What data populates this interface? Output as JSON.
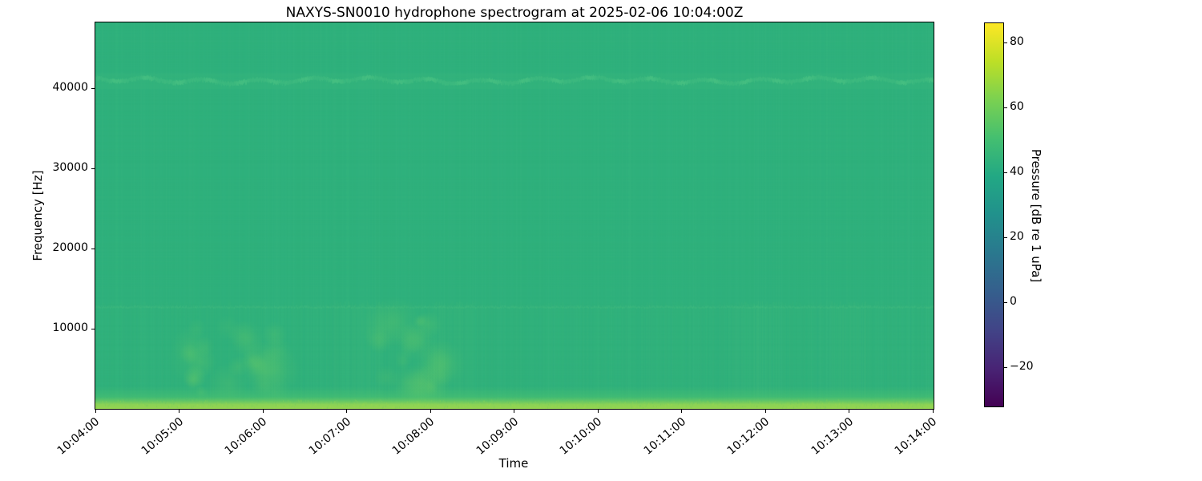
{
  "chart": {
    "title": "NAXYS-SN0010 hydrophone spectrogram at 2025-02-06 10:04:00Z",
    "xlabel": "Time",
    "ylabel": "Frequency [Hz]",
    "colorbar": {
      "label": "Pressure [dB re 1 uPa]",
      "vmin": -32,
      "vmax": 86,
      "ticks": [
        {
          "label": "80",
          "value": 80
        },
        {
          "label": "60",
          "value": 60
        },
        {
          "label": "40",
          "value": 40
        },
        {
          "label": "20",
          "value": 20
        },
        {
          "label": "0",
          "value": 0
        },
        {
          "label": "−20",
          "value": -20
        }
      ],
      "colormap": "viridis",
      "stops": [
        "#440154",
        "#482475",
        "#414487",
        "#355f8d",
        "#2a788e",
        "#21918c",
        "#22a884",
        "#44bf70",
        "#7ad151",
        "#bddf26",
        "#fde725"
      ]
    }
  },
  "chart_data": {
    "type": "heatmap",
    "subtype": "spectrogram",
    "title": "NAXYS-SN0010 hydrophone spectrogram at 2025-02-06 10:04:00Z",
    "xlabel": "Time",
    "ylabel": "Frequency [Hz]",
    "x_ticks": [
      "10:04:00",
      "10:05:00",
      "10:06:00",
      "10:07:00",
      "10:08:00",
      "10:09:00",
      "10:10:00",
      "10:11:00",
      "10:12:00",
      "10:13:00",
      "10:14:00"
    ],
    "y_ticks": [
      {
        "label": "10000",
        "value_hz": 10000
      },
      {
        "label": "20000",
        "value_hz": 20000
      },
      {
        "label": "30000",
        "value_hz": 30000
      },
      {
        "label": "40000",
        "value_hz": 40000
      }
    ],
    "x_range": [
      "10:04:00",
      "10:14:00"
    ],
    "y_range_hz": [
      0,
      48200
    ],
    "value_range_db": [
      -32,
      86
    ],
    "legend": "none",
    "grid": false,
    "background_level": {
      "db": 43,
      "color": "#2fb17c"
    },
    "features": [
      {
        "id": "tonal-band",
        "kind": "wavy-line",
        "freq_hz": 41000,
        "db": 48,
        "color": "#4fc584",
        "strength": 0.55
      },
      {
        "id": "harmonic-line",
        "kind": "faint-line",
        "freq_hz": 12800,
        "db": 46,
        "color": "#55c782",
        "strength": 0.22
      },
      {
        "id": "broadband-low",
        "kind": "vertical-striping-below",
        "max_hz": 13500,
        "db": 45,
        "color": "#66cd78",
        "strength": 0.11
      },
      {
        "id": "vessel-noise-1",
        "kind": "blob",
        "time_frac": 0.165,
        "freq_hz": 6000,
        "freq_radius_hz": 4200,
        "time_radius_frac": 0.055,
        "db": 50,
        "color": "#7dd35f",
        "strength": 0.17
      },
      {
        "id": "vessel-noise-2",
        "kind": "blob",
        "time_frac": 0.375,
        "freq_hz": 6500,
        "freq_radius_hz": 4600,
        "time_radius_frac": 0.04,
        "db": 50,
        "color": "#7dd35f",
        "strength": 0.15
      },
      {
        "id": "surface-band",
        "kind": "bottom-band",
        "max_hz": 1600,
        "db": 62,
        "color_top": "#59c96a",
        "color_bottom": "#9bd84f",
        "strength": 0.95
      }
    ],
    "noise": {
      "column_alpha": 0.045,
      "low_column_alpha": 0.13,
      "row_alpha": 0.02,
      "seed": 42
    }
  }
}
